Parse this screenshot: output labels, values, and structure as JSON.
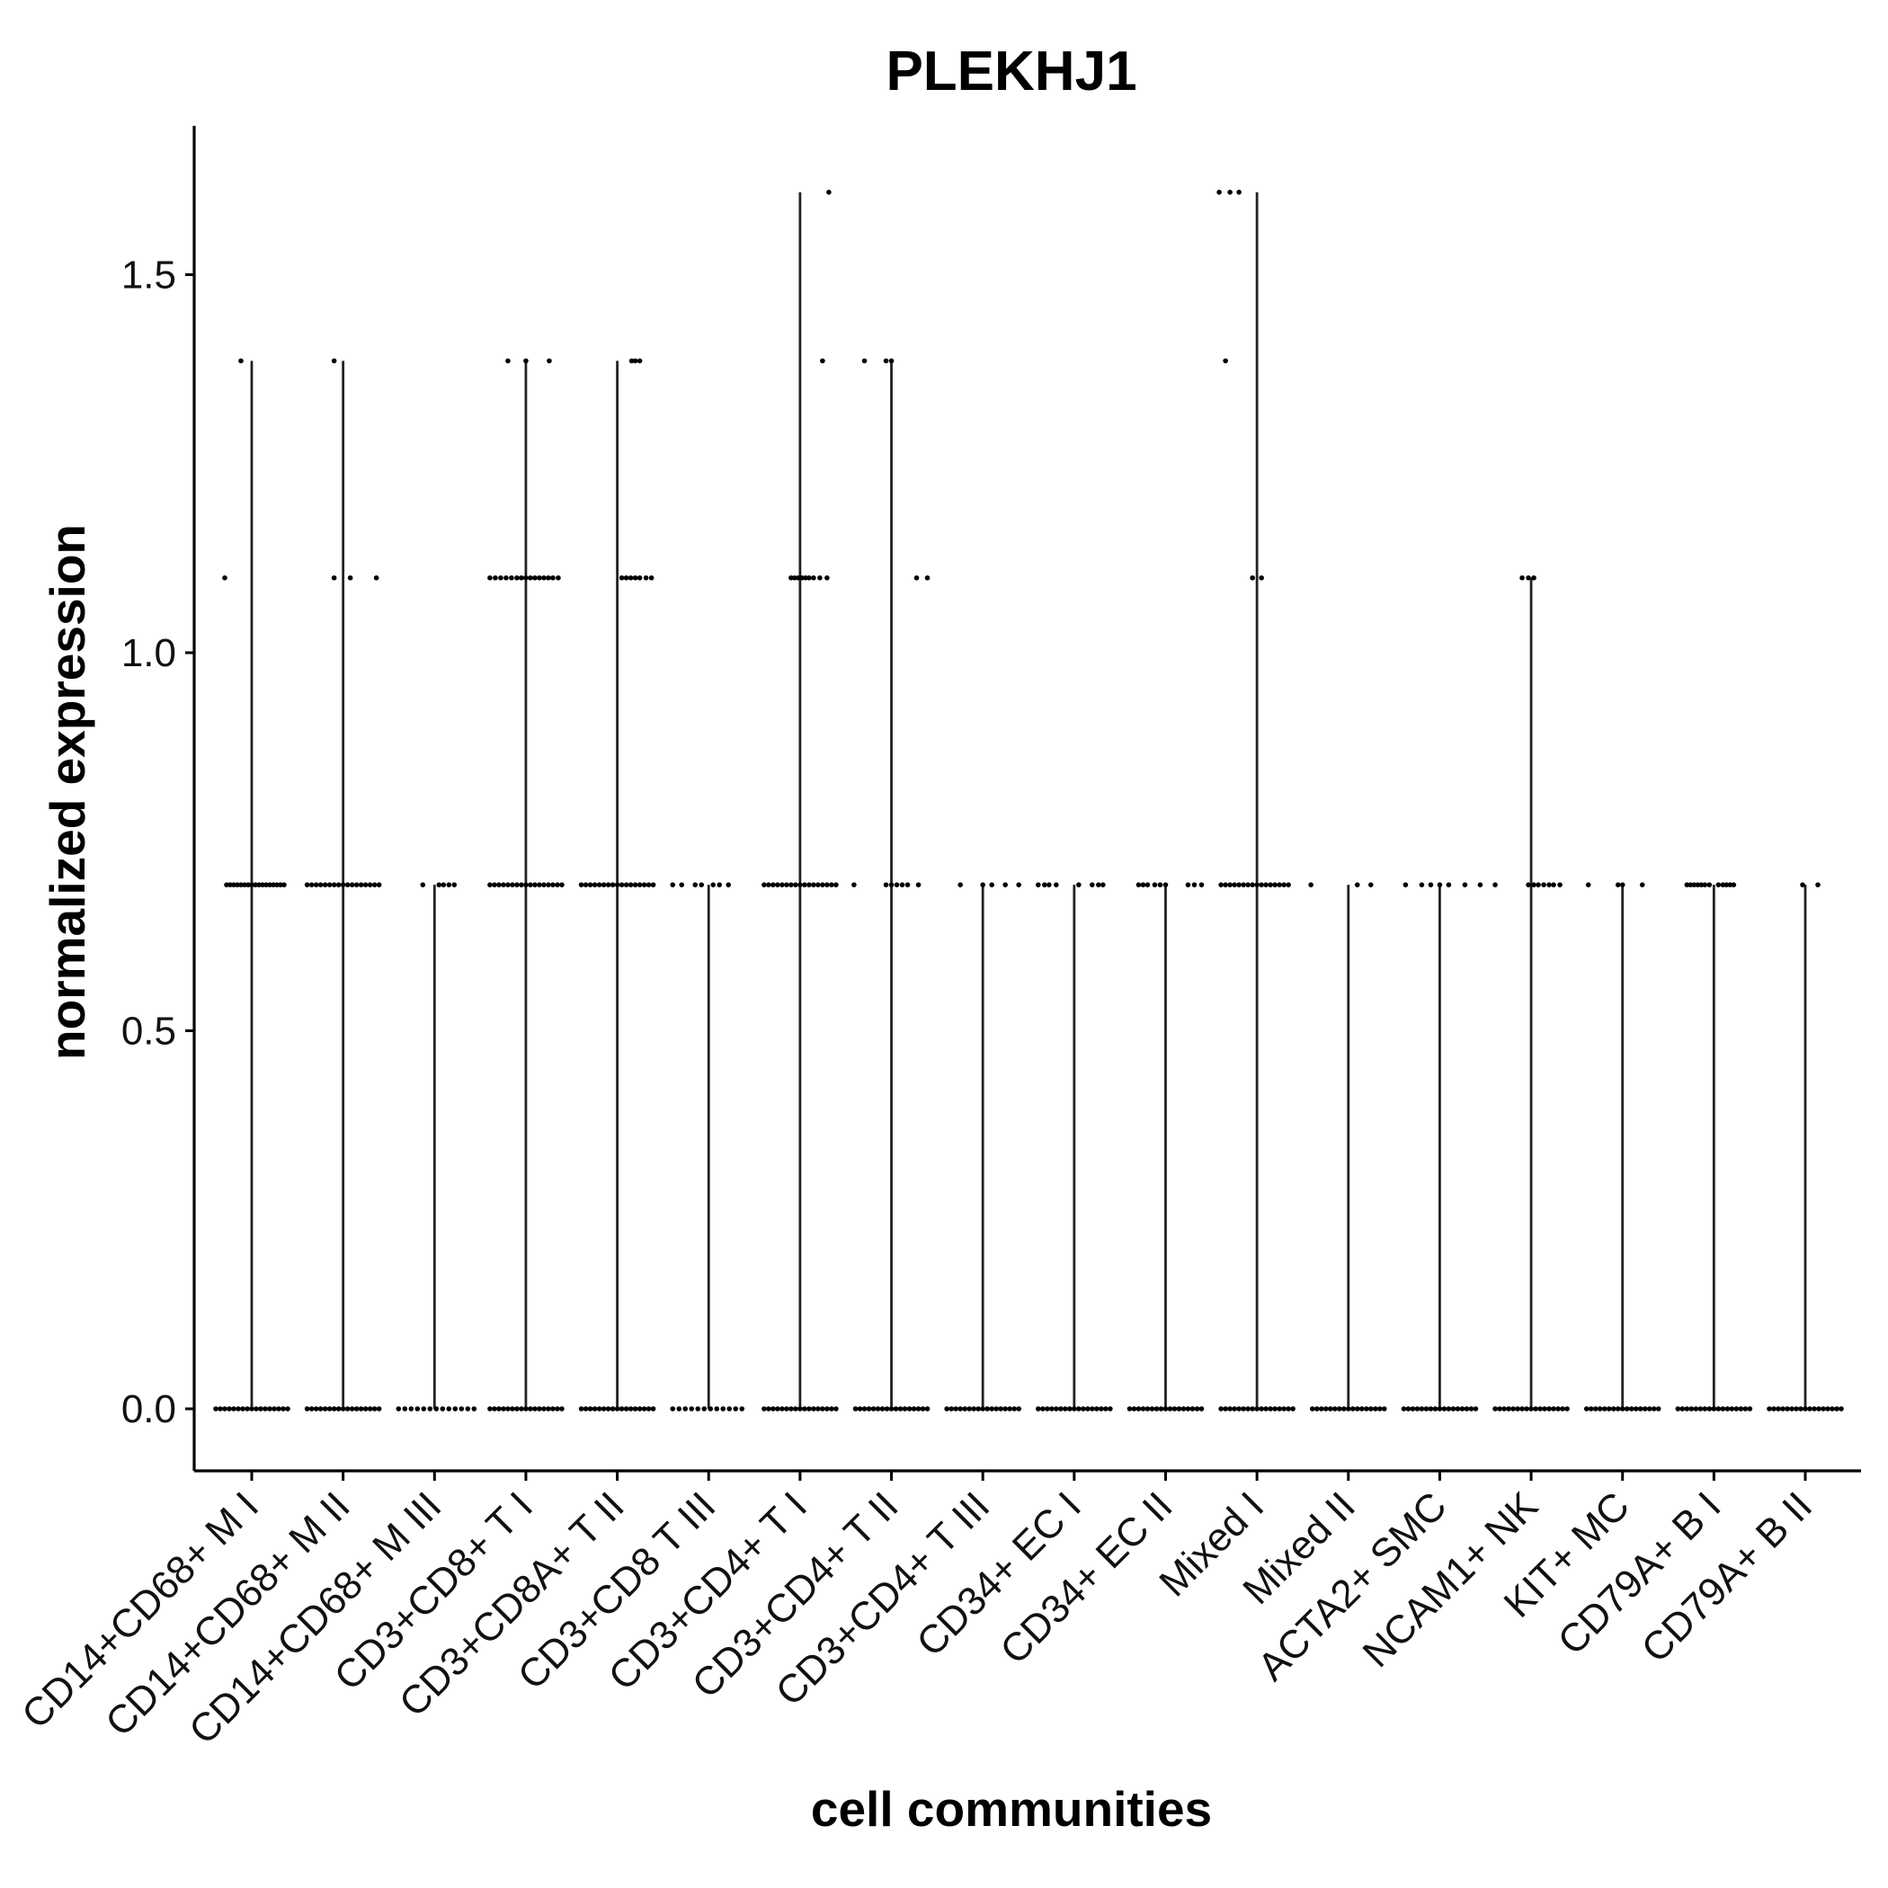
{
  "chart_data": {
    "type": "violin",
    "title": "PLEKHJ1",
    "xlabel": "cell communities",
    "ylabel": "normalized expression",
    "ylim": [
      -0.08,
      1.69
    ],
    "yticks": [
      0.0,
      0.5,
      1.0,
      1.5
    ],
    "ytick_labels": [
      "0.0",
      "0.5",
      "1.0",
      "1.5"
    ],
    "grid": false,
    "legend": "none",
    "categories": [
      "CD14+CD68+ M I",
      "CD14+CD68+ M II",
      "CD14+CD68+ M III",
      "CD3+CD8+ T I",
      "CD3+CD8A+ T II",
      "CD3+CD8 T III",
      "CD3+CD4+ T I",
      "CD3+CD4+ T II",
      "CD3+CD4+ T III",
      "CD34+ EC I",
      "CD34+ EC II",
      "Mixed I",
      "Mixed II",
      "ACTA2+ SMC",
      "NCAM1+ NK",
      "KIT+ MC",
      "CD79A+ B I",
      "CD79A+ B II"
    ],
    "max_values": [
      1.386,
      1.386,
      0.693,
      1.386,
      1.386,
      0.693,
      1.609,
      1.386,
      0.693,
      0.693,
      0.693,
      1.609,
      0.693,
      0.693,
      1.099,
      0.693,
      0.693,
      0.693
    ],
    "jitter_points": [
      {
        "category": "CD14+CD68+ M I",
        "levels": [
          {
            "y": 0,
            "offsets": [
              -40,
              -35,
              -30,
              -25,
              -20,
              -15,
              -10,
              -5,
              0,
              5,
              10,
              15,
              20,
              25,
              30,
              35,
              40
            ]
          },
          {
            "y": 0.693,
            "offsets": [
              -28,
              -24,
              -20,
              -16,
              -12,
              -8,
              -4,
              0,
              4,
              8,
              12,
              16,
              20,
              24,
              28,
              32,
              36
            ]
          },
          {
            "y": 1.099,
            "offsets": [
              -30
            ]
          },
          {
            "y": 1.386,
            "offsets": [
              -12
            ]
          }
        ]
      },
      {
        "category": "CD14+CD68+ M II",
        "levels": [
          {
            "y": 0,
            "offsets": [
              -40,
              -35,
              -30,
              -25,
              -20,
              -15,
              -10,
              -5,
              0,
              5,
              10,
              15,
              20,
              25,
              30,
              35,
              40
            ]
          },
          {
            "y": 0.693,
            "offsets": [
              -40,
              -35,
              -30,
              -25,
              -20,
              -15,
              -10,
              -5,
              0,
              5,
              10,
              15,
              20,
              25,
              30,
              35,
              40
            ]
          },
          {
            "y": 1.099,
            "offsets": [
              -10,
              8,
              37
            ]
          },
          {
            "y": 1.386,
            "offsets": [
              -10
            ]
          }
        ]
      },
      {
        "category": "CD14+CD68+ M III",
        "levels": [
          {
            "y": 0,
            "offsets": [
              -40,
              -33,
              -26,
              -19,
              -12,
              -5,
              2,
              9,
              16,
              23,
              30,
              37,
              44
            ]
          },
          {
            "y": 0.693,
            "offsets": [
              -13,
              5,
              10,
              16,
              22
            ]
          }
        ]
      },
      {
        "category": "CD3+CD8+ T I",
        "levels": [
          {
            "y": 0,
            "offsets": [
              -40,
              -35,
              -30,
              -25,
              -20,
              -15,
              -10,
              -5,
              0,
              5,
              10,
              15,
              20,
              25,
              30,
              35,
              40
            ]
          },
          {
            "y": 0.693,
            "offsets": [
              -40,
              -35,
              -30,
              -25,
              -20,
              -15,
              -10,
              -5,
              0,
              5,
              10,
              15,
              20,
              25,
              30,
              35,
              40
            ]
          },
          {
            "y": 1.099,
            "offsets": [
              -40,
              -34,
              -28,
              -22,
              -16,
              -10,
              -5,
              0,
              5,
              10,
              15,
              20,
              25,
              30,
              36
            ]
          },
          {
            "y": 1.386,
            "offsets": [
              -20,
              0,
              26
            ]
          }
        ]
      },
      {
        "category": "CD3+CD8A+ T II",
        "levels": [
          {
            "y": 0,
            "offsets": [
              -40,
              -35,
              -30,
              -25,
              -20,
              -15,
              -10,
              -5,
              0,
              5,
              10,
              15,
              20,
              25,
              30,
              35,
              40
            ]
          },
          {
            "y": 0.693,
            "offsets": [
              -40,
              -35,
              -30,
              -25,
              -20,
              -15,
              -10,
              -5,
              0,
              5,
              10,
              15,
              20,
              25,
              30,
              35,
              40
            ]
          },
          {
            "y": 1.099,
            "offsets": [
              5,
              10,
              15,
              20,
              25,
              32,
              38
            ]
          },
          {
            "y": 1.386,
            "offsets": [
              16,
              20,
              25
            ]
          }
        ]
      },
      {
        "category": "CD3+CD8 T III",
        "levels": [
          {
            "y": 0,
            "offsets": [
              -40,
              -33,
              -26,
              -19,
              -12,
              -5,
              2,
              9,
              16,
              23,
              30,
              37
            ]
          },
          {
            "y": 0.693,
            "offsets": [
              -40,
              -30,
              -15,
              -8,
              5,
              12,
              22
            ]
          }
        ]
      },
      {
        "category": "CD3+CD4+ T I",
        "levels": [
          {
            "y": 0,
            "offsets": [
              -40,
              -35,
              -30,
              -25,
              -20,
              -15,
              -10,
              -5,
              0,
              5,
              10,
              15,
              20,
              25,
              30,
              35,
              40
            ]
          },
          {
            "y": 0.693,
            "offsets": [
              -40,
              -35,
              -30,
              -25,
              -20,
              -15,
              -10,
              -5,
              0,
              5,
              10,
              15,
              20,
              25,
              30,
              35,
              40,
              60
            ]
          },
          {
            "y": 1.099,
            "offsets": [
              -10,
              -6,
              -2,
              2,
              6,
              10,
              15,
              22,
              30
            ]
          },
          {
            "y": 1.386,
            "offsets": [
              25
            ]
          },
          {
            "y": 1.609,
            "offsets": [
              32
            ]
          }
        ]
      },
      {
        "category": "CD3+CD4+ T II",
        "levels": [
          {
            "y": 0,
            "offsets": [
              -40,
              -35,
              -30,
              -25,
              -20,
              -15,
              -10,
              -5,
              0,
              5,
              10,
              15,
              20,
              25,
              30,
              35,
              40
            ]
          },
          {
            "y": 0.693,
            "offsets": [
              -6,
              0,
              6,
              12,
              18,
              30
            ]
          },
          {
            "y": 1.099,
            "offsets": [
              28,
              40
            ]
          },
          {
            "y": 1.386,
            "offsets": [
              -30,
              -6,
              0
            ]
          }
        ]
      },
      {
        "category": "CD3+CD4+ T III",
        "levels": [
          {
            "y": 0,
            "offsets": [
              -40,
              -35,
              -30,
              -25,
              -20,
              -15,
              -10,
              -5,
              0,
              5,
              10,
              15,
              20,
              25,
              30,
              35,
              40
            ]
          },
          {
            "y": 0.693,
            "offsets": [
              -25,
              0,
              10,
              25,
              40
            ]
          }
        ]
      },
      {
        "category": "CD34+ EC I",
        "levels": [
          {
            "y": 0,
            "offsets": [
              -40,
              -35,
              -30,
              -25,
              -20,
              -15,
              -10,
              -5,
              0,
              5,
              10,
              15,
              20,
              25,
              30,
              35,
              40
            ]
          },
          {
            "y": 0.693,
            "offsets": [
              -40,
              -33,
              -28,
              -20,
              5,
              20,
              27,
              32
            ]
          }
        ]
      },
      {
        "category": "CD34+ EC II",
        "levels": [
          {
            "y": 0,
            "offsets": [
              -40,
              -35,
              -30,
              -25,
              -20,
              -15,
              -10,
              -5,
              0,
              5,
              10,
              15,
              20,
              25,
              30,
              35,
              40
            ]
          },
          {
            "y": 0.693,
            "offsets": [
              -30,
              -25,
              -20,
              -12,
              -6,
              0,
              25,
              32,
              40
            ]
          }
        ]
      },
      {
        "category": "Mixed I",
        "levels": [
          {
            "y": 0,
            "offsets": [
              -40,
              -35,
              -30,
              -25,
              -20,
              -15,
              -10,
              -5,
              0,
              5,
              10,
              15,
              20,
              25,
              30,
              35,
              40
            ]
          },
          {
            "y": 0.693,
            "offsets": [
              -40,
              -35,
              -30,
              -25,
              -20,
              -15,
              -10,
              -5,
              0,
              5,
              10,
              15,
              20,
              25,
              30,
              35,
              60
            ]
          },
          {
            "y": 1.099,
            "offsets": [
              -5,
              5
            ]
          },
          {
            "y": 1.386,
            "offsets": [
              -35
            ]
          },
          {
            "y": 1.609,
            "offsets": [
              -42,
              -30,
              -20
            ]
          }
        ]
      },
      {
        "category": "Mixed II",
        "levels": [
          {
            "y": 0,
            "offsets": [
              -40,
              -35,
              -30,
              -25,
              -20,
              -15,
              -10,
              -5,
              0,
              5,
              10,
              15,
              20,
              25,
              30,
              35,
              40
            ]
          },
          {
            "y": 0.693,
            "offsets": [
              10,
              25
            ]
          }
        ]
      },
      {
        "category": "ACTA2+ SMC",
        "levels": [
          {
            "y": 0,
            "offsets": [
              -40,
              -35,
              -30,
              -25,
              -20,
              -15,
              -10,
              -5,
              0,
              5,
              10,
              15,
              20,
              25,
              30,
              35,
              40
            ]
          },
          {
            "y": 0.693,
            "offsets": [
              -38,
              -20,
              -10,
              0,
              10,
              28,
              45
            ]
          }
        ]
      },
      {
        "category": "NCAM1+ NK",
        "levels": [
          {
            "y": 0,
            "offsets": [
              -40,
              -35,
              -30,
              -25,
              -20,
              -15,
              -10,
              -5,
              0,
              5,
              10,
              15,
              20,
              25,
              30,
              35,
              40
            ]
          },
          {
            "y": 0.693,
            "offsets": [
              -40,
              -3,
              3,
              8,
              14,
              20,
              25,
              32
            ]
          },
          {
            "y": 1.099,
            "offsets": [
              -10,
              -3,
              3
            ]
          }
        ]
      },
      {
        "category": "KIT+ MC",
        "levels": [
          {
            "y": 0,
            "offsets": [
              -40,
              -35,
              -30,
              -25,
              -20,
              -15,
              -10,
              -5,
              0,
              5,
              10,
              15,
              20,
              25,
              30,
              35,
              40
            ]
          },
          {
            "y": 0.693,
            "offsets": [
              -38,
              -5,
              0,
              22
            ]
          }
        ]
      },
      {
        "category": "CD79A+ B I",
        "levels": [
          {
            "y": 0,
            "offsets": [
              -40,
              -35,
              -30,
              -25,
              -20,
              -15,
              -10,
              -5,
              0,
              5,
              10,
              15,
              20,
              25,
              30,
              35,
              40
            ]
          },
          {
            "y": 0.693,
            "offsets": [
              -30,
              -26,
              -22,
              -18,
              -14,
              -10,
              -5,
              5,
              10,
              14,
              18,
              22
            ]
          }
        ]
      },
      {
        "category": "CD79A+ B II",
        "levels": [
          {
            "y": 0,
            "offsets": [
              -40,
              -35,
              -30,
              -25,
              -20,
              -15,
              -10,
              -5,
              0,
              5,
              10,
              15,
              20,
              25,
              30,
              35,
              40
            ]
          },
          {
            "y": 0.693,
            "offsets": [
              -3,
              14
            ]
          }
        ]
      }
    ]
  }
}
